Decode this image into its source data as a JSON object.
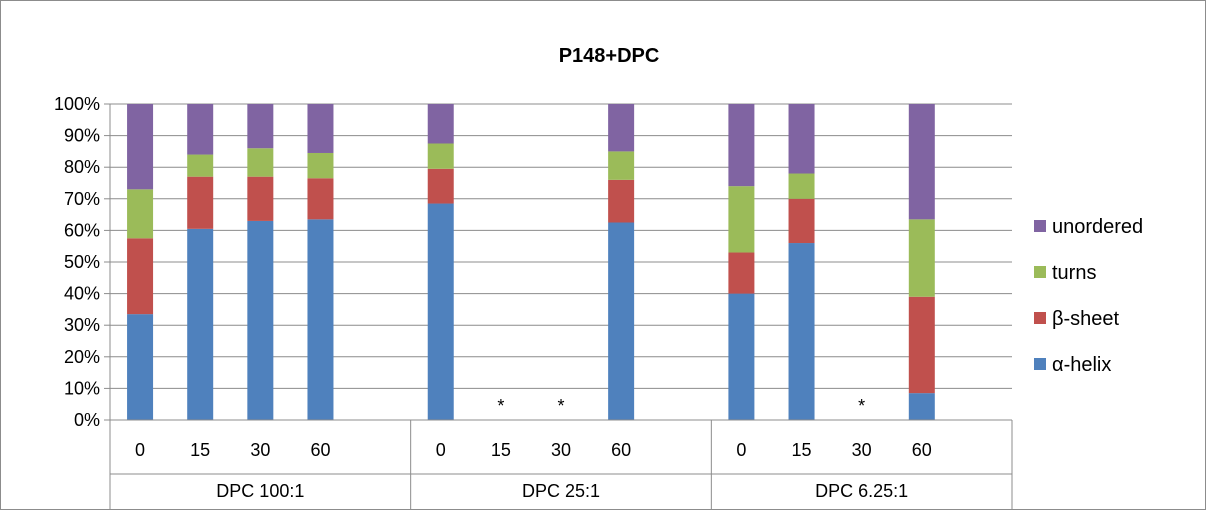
{
  "chart_data": {
    "type": "bar",
    "stacked": true,
    "percent_stacked": true,
    "title": "P148+DPC",
    "xlabel": "",
    "ylabel": "",
    "ylim": [
      0,
      100
    ],
    "y_ticks": [
      "0%",
      "10%",
      "20%",
      "30%",
      "40%",
      "50%",
      "60%",
      "70%",
      "80%",
      "90%",
      "100%"
    ],
    "groups": [
      {
        "label": "DPC 100:1",
        "categories": [
          "0",
          "15",
          "30",
          "60"
        ]
      },
      {
        "label": "DPC 25:1",
        "categories": [
          "0",
          "15",
          "30",
          "60"
        ]
      },
      {
        "label": "DPC 6.25:1",
        "categories": [
          "0",
          "15",
          "30",
          "60"
        ]
      }
    ],
    "series": [
      {
        "name": "α-helix",
        "color": "#4f81bd",
        "values": [
          33.5,
          60.5,
          63,
          63.5,
          68.5,
          null,
          null,
          62.5,
          40,
          56,
          null,
          8.5
        ]
      },
      {
        "name": "β-sheet",
        "color": "#c0504d",
        "values": [
          24,
          16.5,
          14,
          13,
          11,
          null,
          null,
          13.5,
          13,
          14,
          null,
          30.5
        ]
      },
      {
        "name": "turns",
        "color": "#9bbb59",
        "values": [
          15.5,
          7,
          9,
          8,
          8,
          null,
          null,
          9,
          21,
          8,
          null,
          24.5
        ]
      },
      {
        "name": "unordered",
        "color": "#8064a2",
        "values": [
          27,
          16,
          14,
          15.5,
          12.5,
          null,
          null,
          15,
          26,
          22,
          null,
          36.5
        ]
      }
    ],
    "missing_marker": "*",
    "grid": true,
    "legend_position": "right",
    "legend_order": [
      "unordered",
      "turns",
      "β-sheet",
      "α-helix"
    ]
  }
}
